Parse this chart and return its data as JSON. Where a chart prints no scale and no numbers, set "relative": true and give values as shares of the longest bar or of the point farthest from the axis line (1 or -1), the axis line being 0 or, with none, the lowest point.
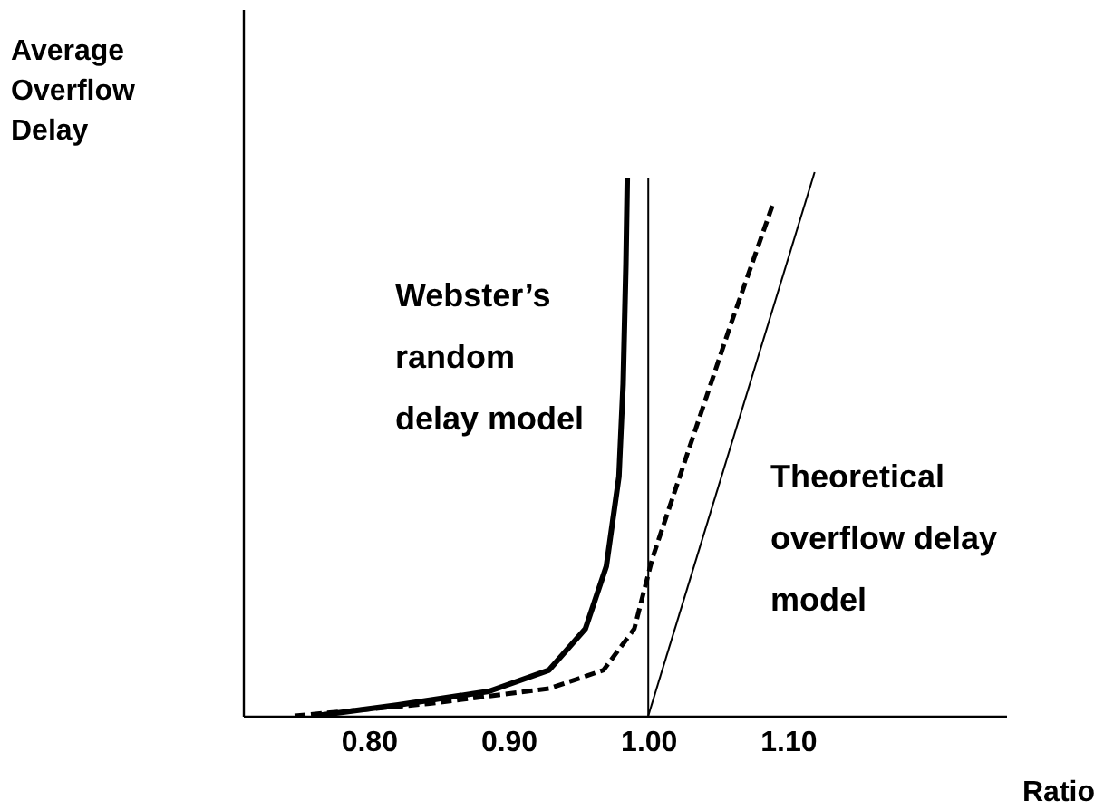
{
  "chart_data": {
    "type": "line",
    "xlabel": "Ratio",
    "ylabel": "Average\nOverflow\nDelay",
    "relative": true,
    "xlim": [
      0.71,
      1.256
    ],
    "xticks": [
      {
        "value": 0.8,
        "label": "0.80"
      },
      {
        "value": 0.9,
        "label": "0.90"
      },
      {
        "value": 1.0,
        "label": "1.00"
      },
      {
        "value": 1.1,
        "label": "1.10"
      }
    ],
    "series": [
      {
        "name": "Webster’s\nrandom\n delay model",
        "color": "#000000",
        "line_style": "solid",
        "x": [
          0.762,
          0.821,
          0.886,
          0.929,
          0.955,
          0.97,
          0.979,
          0.982,
          0.984,
          0.985
        ],
        "values": [
          0,
          0.02,
          0.045,
          0.084,
          0.16,
          0.275,
          0.44,
          0.61,
          0.83,
          0.99
        ]
      },
      {
        "color": "#000000",
        "line_style": "dashed",
        "x": [
          0.747,
          0.842,
          0.929,
          0.968,
          0.99,
          1.003,
          1.029,
          1.059,
          1.089
        ],
        "values": [
          0,
          0.022,
          0.05,
          0.084,
          0.16,
          0.29,
          0.49,
          0.72,
          0.94
        ]
      },
      {
        "name": "Theoretical\n overflow delay\n model",
        "color": "#000000",
        "line_style": "solid",
        "x": [
          1.0,
          1.119
        ],
        "values": [
          0,
          1
        ]
      }
    ],
    "ref_lines": [
      {
        "axis": "x",
        "value": 1.0,
        "color": "#000000"
      }
    ],
    "tick_labels": "x"
  }
}
